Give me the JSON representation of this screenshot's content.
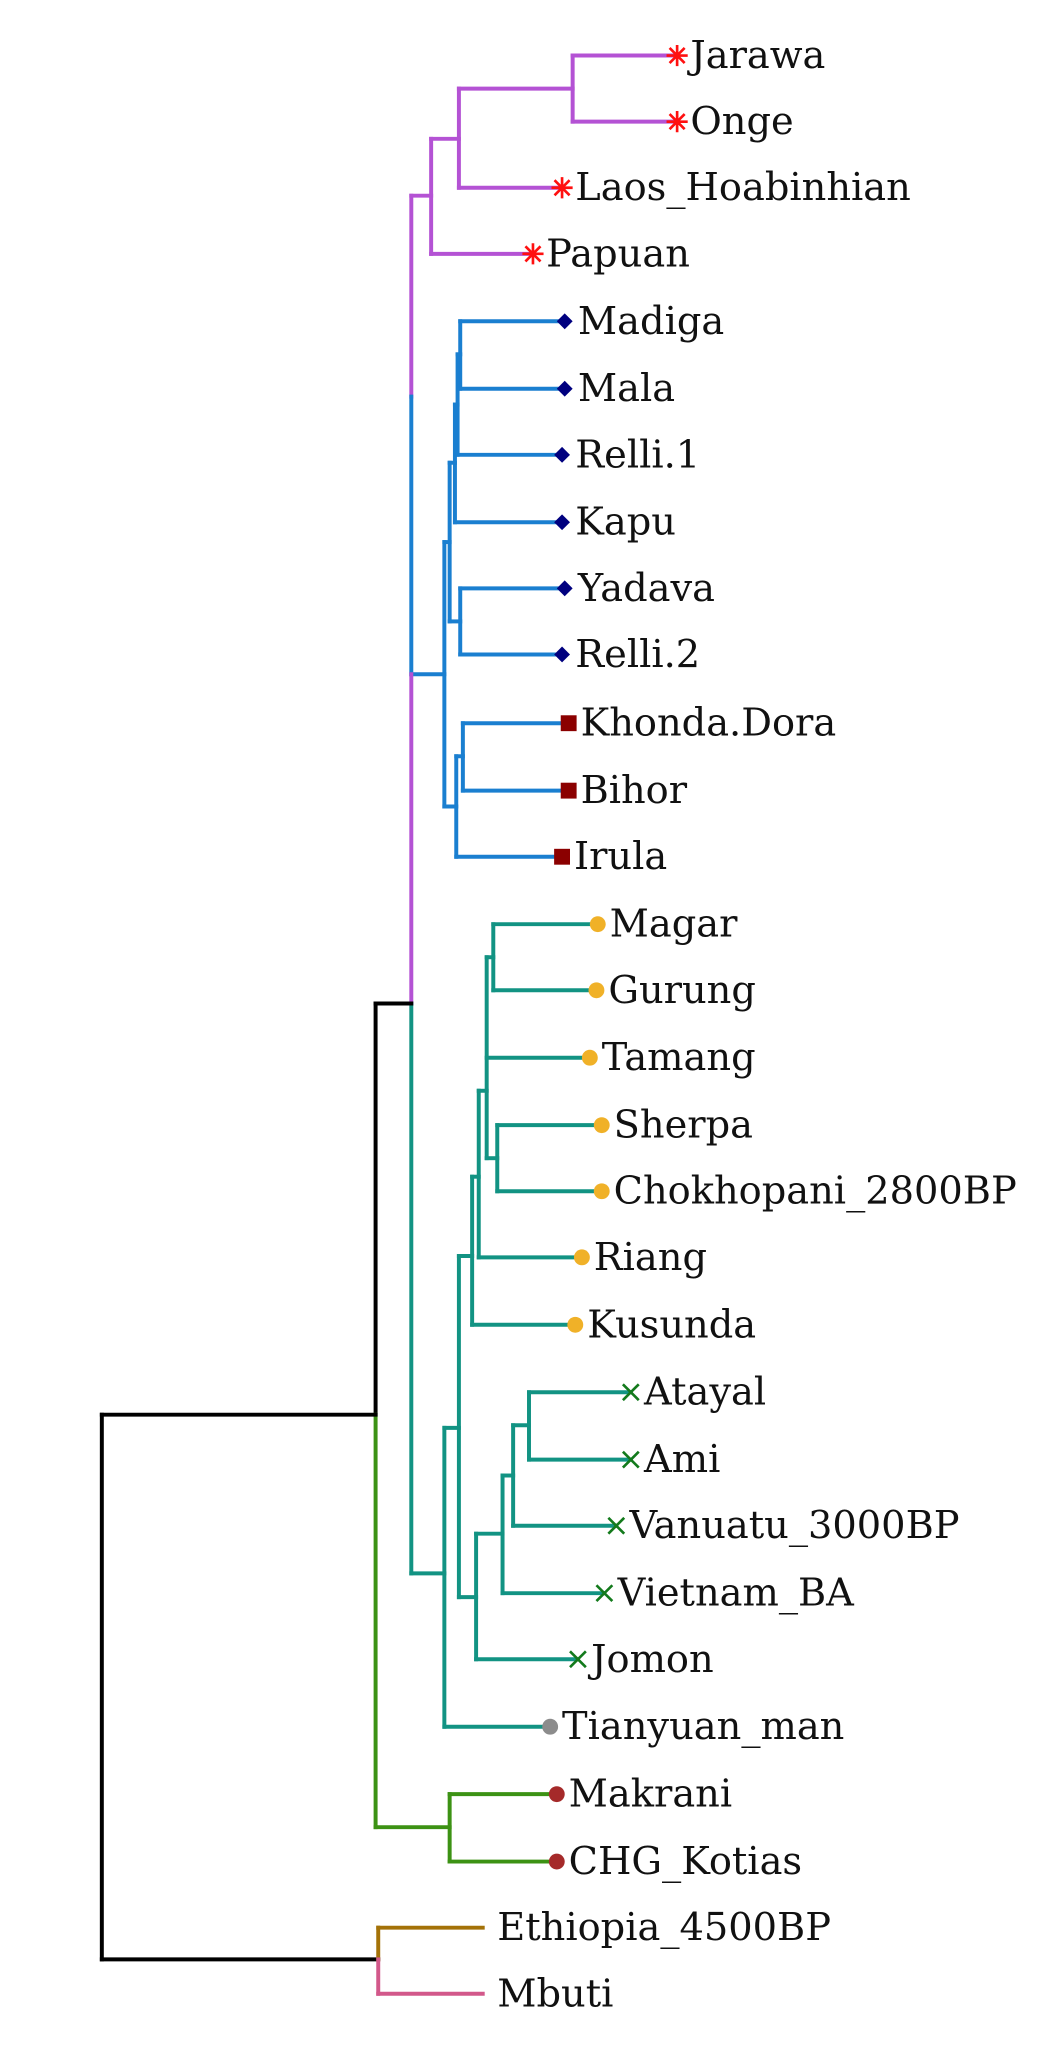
{
  "colors": {
    "purple": "#b452d4",
    "blue": "#1a7fd0",
    "teal": "#129383",
    "green": "#3c9214",
    "brown": "#a47208",
    "pink": "#d2588a",
    "black": "#000000",
    "red_marker": "#ff1010",
    "navy_marker": "#00007f",
    "darkred_marker": "#8b0000",
    "gold_marker": "#f0b128",
    "green_marker": "#137a1c",
    "grey_marker": "#8c8c8c",
    "brownred_marker": "#a52a2a"
  },
  "tips": [
    {
      "label": "Jarawa",
      "marker": "asterisk",
      "marker_color": "red_marker",
      "branch_color": "purple"
    },
    {
      "label": "Onge",
      "marker": "asterisk",
      "marker_color": "red_marker",
      "branch_color": "purple"
    },
    {
      "label": "Laos_Hoabinhian",
      "marker": "asterisk",
      "marker_color": "red_marker",
      "branch_color": "purple"
    },
    {
      "label": "Papuan",
      "marker": "asterisk",
      "marker_color": "red_marker",
      "branch_color": "purple"
    },
    {
      "label": "Madiga",
      "marker": "diamond",
      "marker_color": "navy_marker",
      "branch_color": "blue"
    },
    {
      "label": "Mala",
      "marker": "diamond",
      "marker_color": "navy_marker",
      "branch_color": "blue"
    },
    {
      "label": "Relli.1",
      "marker": "diamond",
      "marker_color": "navy_marker",
      "branch_color": "blue"
    },
    {
      "label": "Kapu",
      "marker": "diamond",
      "marker_color": "navy_marker",
      "branch_color": "blue"
    },
    {
      "label": "Yadava",
      "marker": "diamond",
      "marker_color": "navy_marker",
      "branch_color": "blue"
    },
    {
      "label": "Relli.2",
      "marker": "diamond",
      "marker_color": "navy_marker",
      "branch_color": "blue"
    },
    {
      "label": "Khonda.Dora",
      "marker": "square",
      "marker_color": "darkred_marker",
      "branch_color": "blue"
    },
    {
      "label": "Bihor",
      "marker": "square",
      "marker_color": "darkred_marker",
      "branch_color": "blue"
    },
    {
      "label": "Irula",
      "marker": "square",
      "marker_color": "darkred_marker",
      "branch_color": "blue"
    },
    {
      "label": "Magar",
      "marker": "circle",
      "marker_color": "gold_marker",
      "branch_color": "teal"
    },
    {
      "label": "Gurung",
      "marker": "circle",
      "marker_color": "gold_marker",
      "branch_color": "teal"
    },
    {
      "label": "Tamang",
      "marker": "circle",
      "marker_color": "gold_marker",
      "branch_color": "teal"
    },
    {
      "label": "Sherpa",
      "marker": "circle",
      "marker_color": "gold_marker",
      "branch_color": "teal"
    },
    {
      "label": "Chokhopani_2800BP",
      "marker": "circle",
      "marker_color": "gold_marker",
      "branch_color": "teal"
    },
    {
      "label": "Riang",
      "marker": "circle",
      "marker_color": "gold_marker",
      "branch_color": "teal"
    },
    {
      "label": "Kusunda",
      "marker": "circle",
      "marker_color": "gold_marker",
      "branch_color": "teal"
    },
    {
      "label": "Atayal",
      "marker": "cross",
      "marker_color": "green_marker",
      "branch_color": "teal"
    },
    {
      "label": "Ami",
      "marker": "cross",
      "marker_color": "green_marker",
      "branch_color": "teal"
    },
    {
      "label": "Vanuatu_3000BP",
      "marker": "cross",
      "marker_color": "green_marker",
      "branch_color": "teal"
    },
    {
      "label": "Vietnam_BA",
      "marker": "cross",
      "marker_color": "green_marker",
      "branch_color": "teal"
    },
    {
      "label": "Jomon",
      "marker": "cross",
      "marker_color": "green_marker",
      "branch_color": "teal"
    },
    {
      "label": "Tianyuan_man",
      "marker": "circle",
      "marker_color": "grey_marker",
      "branch_color": "teal"
    },
    {
      "label": "Makrani",
      "marker": "circle",
      "marker_color": "brownred_marker",
      "branch_color": "green"
    },
    {
      "label": "CHG_Kotias",
      "marker": "circle",
      "marker_color": "brownred_marker",
      "branch_color": "green"
    },
    {
      "label": "Ethiopia_4500BP",
      "marker": "none",
      "marker_color": "",
      "branch_color": "brown"
    },
    {
      "label": "Mbuti",
      "marker": "none",
      "marker_color": "",
      "branch_color": "pink"
    }
  ]
}
